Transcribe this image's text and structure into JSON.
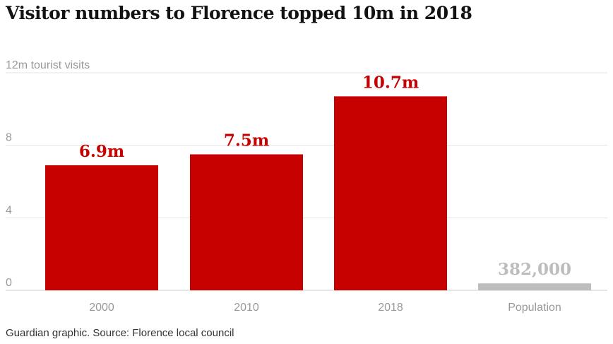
{
  "title": "Visitor numbers to Florence topped 10m in 2018",
  "source": "Guardian graphic. Source: Florence local council",
  "colors": {
    "bar": "#c70000",
    "secondary_bar": "#bdbdbd",
    "bar_label": "#c70000",
    "secondary_label": "#bdbdbd"
  },
  "chart_data": {
    "type": "bar",
    "title": "Visitor numbers to Florence topped 10m in 2018",
    "ylabel": "12m tourist visits",
    "ylim": [
      0,
      12
    ],
    "yticks": [
      {
        "value": 0,
        "label": "0"
      },
      {
        "value": 4,
        "label": "4"
      },
      {
        "value": 8,
        "label": "8"
      },
      {
        "value": 12,
        "label": "12m tourist visits"
      }
    ],
    "grid": true,
    "categories": [
      "2000",
      "2010",
      "2018",
      "Population"
    ],
    "values": [
      6.9,
      7.5,
      10.7,
      0.382
    ],
    "labels": [
      "6.9m",
      "7.5m",
      "10.7m",
      "382,000"
    ],
    "highlight": [
      true,
      true,
      true,
      false
    ]
  }
}
